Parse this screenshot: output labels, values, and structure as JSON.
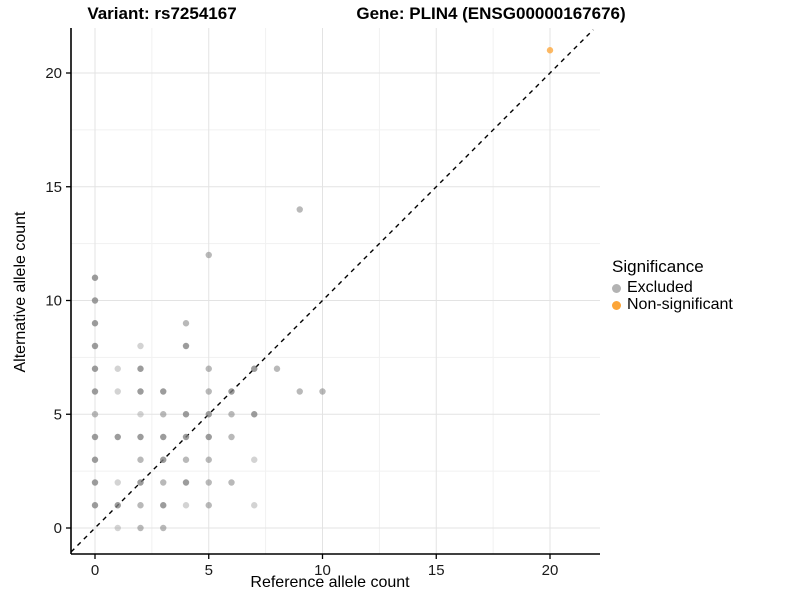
{
  "titles": {
    "variant": "Variant: rs7254167",
    "gene": "Gene: PLIN4 (ENSG00000167676)"
  },
  "legend": {
    "title": "Significance",
    "items": [
      {
        "label": "Excluded",
        "color": "#b3b3b3"
      },
      {
        "label": "Non-significant",
        "color": "#fca538"
      }
    ]
  },
  "colors": {
    "excluded_point": "#808080",
    "nonsignificant_point": "#fca538",
    "grid_major": "#e3e3e3",
    "grid_minor": "#f1f1f1",
    "axis_line": "#000000",
    "identity_line": "#000000",
    "tick_label": "#1a1a1a"
  },
  "chart_data": {
    "type": "scatter",
    "title_left": "Variant: rs7254167",
    "title_right": "Gene: PLIN4 (ENSG00000167676)",
    "xlabel": "Reference allele count",
    "ylabel": "Alternative allele count",
    "x_ticks": [
      0,
      5,
      10,
      15,
      20
    ],
    "y_ticks": [
      0,
      5,
      10,
      15,
      20
    ],
    "x_tick_labels": [
      "0",
      "5",
      "10",
      "15",
      "20"
    ],
    "y_tick_labels": [
      "0",
      "5",
      "10",
      "15",
      "20"
    ],
    "xlim": [
      -1.05,
      22.2
    ],
    "ylim": [
      -1.15,
      21.9
    ],
    "grid": "major+minor",
    "legend_position": "right",
    "identity_line": {
      "slope": 1,
      "intercept": 0,
      "style": "dashed"
    },
    "series": [
      {
        "name": "Excluded",
        "color": "#808080",
        "note": "points as [x, y, shade] where shade 1=light 2=medium 3=dark (overplotting alpha)",
        "points": [
          [
            1,
            0,
            1
          ],
          [
            2,
            0,
            2
          ],
          [
            3,
            0,
            2
          ],
          [
            0,
            1,
            3
          ],
          [
            1,
            1,
            3
          ],
          [
            2,
            1,
            2
          ],
          [
            3,
            1,
            3
          ],
          [
            4,
            1,
            1
          ],
          [
            5,
            1,
            2
          ],
          [
            7,
            1,
            1
          ],
          [
            0,
            2,
            3
          ],
          [
            1,
            2,
            1
          ],
          [
            2,
            2,
            3
          ],
          [
            3,
            2,
            2
          ],
          [
            4,
            2,
            3
          ],
          [
            5,
            2,
            2
          ],
          [
            6,
            2,
            2
          ],
          [
            0,
            3,
            3
          ],
          [
            2,
            3,
            2
          ],
          [
            3,
            3,
            3
          ],
          [
            4,
            3,
            2
          ],
          [
            5,
            3,
            2
          ],
          [
            7,
            3,
            1
          ],
          [
            0,
            4,
            3
          ],
          [
            1,
            4,
            3
          ],
          [
            2,
            4,
            3
          ],
          [
            3,
            4,
            3
          ],
          [
            4,
            4,
            3
          ],
          [
            5,
            4,
            3
          ],
          [
            6,
            4,
            2
          ],
          [
            0,
            5,
            2
          ],
          [
            2,
            5,
            1
          ],
          [
            3,
            5,
            2
          ],
          [
            4,
            5,
            3
          ],
          [
            5,
            5,
            3
          ],
          [
            6,
            5,
            2
          ],
          [
            7,
            5,
            3
          ],
          [
            0,
            6,
            3
          ],
          [
            1,
            6,
            1
          ],
          [
            2,
            6,
            3
          ],
          [
            3,
            6,
            3
          ],
          [
            5,
            6,
            2
          ],
          [
            6,
            6,
            3
          ],
          [
            9,
            6,
            2
          ],
          [
            10,
            6,
            2
          ],
          [
            0,
            7,
            3
          ],
          [
            1,
            7,
            1
          ],
          [
            2,
            7,
            3
          ],
          [
            5,
            7,
            2
          ],
          [
            7,
            7,
            3
          ],
          [
            8,
            7,
            2
          ],
          [
            0,
            8,
            3
          ],
          [
            2,
            8,
            1
          ],
          [
            4,
            8,
            3
          ],
          [
            0,
            9,
            3
          ],
          [
            4,
            9,
            2
          ],
          [
            0,
            10,
            3
          ],
          [
            0,
            11,
            3
          ],
          [
            5,
            12,
            2
          ],
          [
            9,
            14,
            2
          ]
        ]
      },
      {
        "name": "Non-significant",
        "color": "#fca538",
        "points": [
          [
            20,
            21,
            3
          ]
        ]
      }
    ]
  }
}
